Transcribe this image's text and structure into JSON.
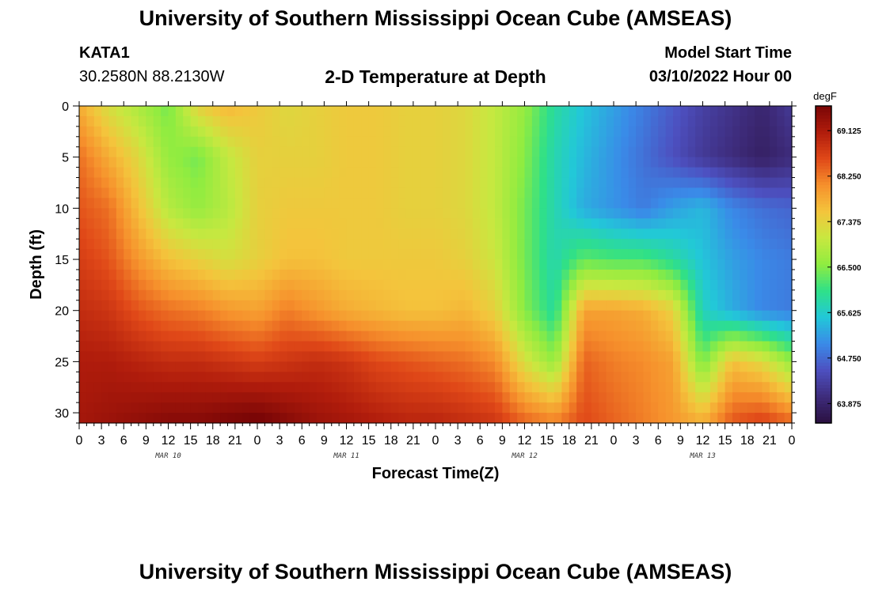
{
  "header": {
    "title": "University of Southern Mississippi Ocean Cube (AMSEAS)",
    "station": "KATA1",
    "coordinates": "30.2580N  88.2130W",
    "plot_title": "2-D Temperature at Depth",
    "start_label": "Model Start Time",
    "start_value": "03/10/2022 Hour 00"
  },
  "footer": {
    "title": "University of Southern Mississippi Ocean Cube (AMSEAS)"
  },
  "chart_data": {
    "type": "heatmap",
    "title": "2-D Temperature at Depth",
    "xlabel": "Forecast Time(Z)",
    "ylabel": "Depth (ft)",
    "x_hours": [
      0,
      96
    ],
    "x_ticks": [
      "0",
      "3",
      "6",
      "9",
      "12",
      "15",
      "18",
      "21",
      "0",
      "3",
      "6",
      "9",
      "12",
      "15",
      "18",
      "21",
      "0",
      "3",
      "6",
      "9",
      "12",
      "15",
      "18",
      "21",
      "0",
      "3",
      "6",
      "9",
      "12",
      "15",
      "18",
      "21",
      "0"
    ],
    "date_labels": [
      {
        "label": "MAR 10",
        "hour": 12
      },
      {
        "label": "MAR 11",
        "hour": 36
      },
      {
        "label": "MAR 12",
        "hour": 60
      },
      {
        "label": "MAR 13",
        "hour": 84
      }
    ],
    "ylim": [
      0,
      31
    ],
    "y_ticks": [
      "0",
      "5",
      "10",
      "15",
      "20",
      "25",
      "30"
    ],
    "colorbar": {
      "unit": "degF",
      "vmin": 63.5,
      "vmax": 69.6,
      "tick_values": [
        69.125,
        68.25,
        67.375,
        66.5,
        65.625,
        64.75,
        63.875
      ],
      "tick_labels": [
        "69.125",
        "68.250",
        "67.375",
        "66.500",
        "65.625",
        "64.750",
        "63.875"
      ],
      "stops": [
        "#2a1040",
        "#3e2c7c",
        "#4d50c0",
        "#3a8ae8",
        "#22c8d8",
        "#2fe088",
        "#90ec40",
        "#c8e840",
        "#f4c43c",
        "#f6902c",
        "#e04818",
        "#b01c0c",
        "#7a0606"
      ]
    },
    "sample_hours": [
      0,
      4,
      8,
      12,
      16,
      20,
      24,
      28,
      32,
      36,
      40,
      44,
      48,
      52,
      56,
      60,
      64,
      68,
      72,
      76,
      80,
      84,
      88,
      92,
      96
    ],
    "sample_depths": [
      0,
      5,
      10,
      15,
      20,
      25,
      31
    ],
    "values": [
      [
        67.8,
        67.2,
        66.8,
        66.4,
        67.4,
        67.7,
        67.5,
        67.3,
        67.4,
        67.5,
        67.5,
        67.4,
        67.4,
        67.3,
        67.0,
        66.6,
        65.9,
        65.5,
        65.2,
        64.9,
        64.6,
        64.3,
        64.1,
        63.9,
        64.2
      ],
      [
        68.3,
        67.8,
        67.3,
        66.6,
        66.4,
        67.0,
        67.4,
        67.4,
        67.4,
        67.5,
        67.5,
        67.4,
        67.4,
        67.3,
        67.0,
        66.5,
        65.8,
        65.4,
        65.1,
        64.8,
        64.5,
        64.2,
        64.0,
        63.8,
        64.0
      ],
      [
        68.5,
        68.3,
        67.6,
        66.9,
        66.6,
        66.9,
        67.4,
        67.5,
        67.5,
        67.5,
        67.5,
        67.4,
        67.4,
        67.3,
        67.0,
        66.4,
        65.8,
        65.3,
        65.1,
        64.9,
        65.2,
        65.4,
        65.0,
        64.8,
        64.7
      ],
      [
        68.7,
        68.5,
        68.0,
        67.6,
        67.4,
        67.2,
        67.4,
        67.6,
        67.6,
        67.5,
        67.5,
        67.5,
        67.5,
        67.4,
        67.1,
        66.4,
        65.8,
        66.3,
        66.2,
        66.2,
        65.9,
        65.5,
        65.2,
        65.0,
        64.9
      ],
      [
        68.9,
        68.8,
        68.5,
        68.3,
        68.2,
        68.0,
        67.9,
        68.2,
        68.0,
        67.8,
        67.7,
        67.6,
        67.6,
        67.7,
        67.4,
        66.5,
        65.9,
        67.9,
        67.9,
        67.8,
        67.4,
        65.7,
        65.3,
        65.0,
        64.9
      ],
      [
        69.1,
        69.1,
        69.0,
        68.9,
        68.9,
        68.8,
        68.7,
        68.8,
        68.9,
        68.8,
        68.6,
        68.5,
        68.4,
        68.3,
        68.1,
        67.2,
        66.6,
        68.4,
        68.2,
        68.1,
        67.9,
        66.4,
        67.6,
        67.3,
        66.6
      ],
      [
        69.2,
        69.3,
        69.4,
        69.5,
        69.5,
        69.6,
        69.7,
        69.5,
        69.3,
        69.2,
        69.1,
        69.0,
        69.0,
        68.9,
        68.8,
        68.4,
        68.2,
        68.6,
        68.4,
        68.2,
        68.0,
        67.8,
        68.5,
        68.7,
        68.4
      ]
    ]
  }
}
